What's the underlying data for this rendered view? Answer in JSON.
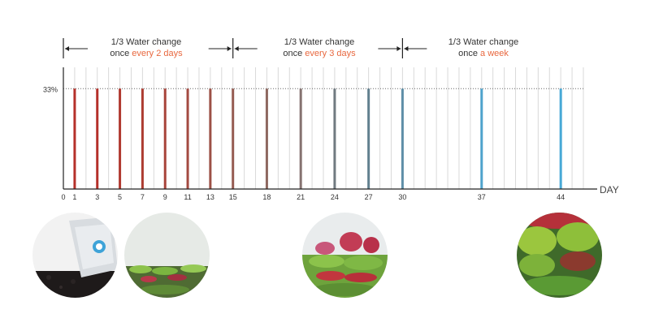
{
  "chart_data": {
    "type": "bar",
    "xlabel": "DAY",
    "ylabel_tick": "33%",
    "x": [
      1,
      3,
      5,
      7,
      9,
      11,
      13,
      15,
      18,
      21,
      24,
      27,
      30,
      37,
      44
    ],
    "x_ticks": [
      0,
      1,
      3,
      5,
      7,
      9,
      11,
      13,
      15,
      18,
      21,
      24,
      27,
      30,
      37,
      44
    ],
    "values": [
      33,
      33,
      33,
      33,
      33,
      33,
      33,
      33,
      33,
      33,
      33,
      33,
      33,
      33,
      33
    ],
    "bar_colors": [
      "#b5302a",
      "#b5302a",
      "#b03a30",
      "#ad3c31",
      "#a8433a",
      "#a44a41",
      "#9c5146",
      "#965c52",
      "#8e6860",
      "#857270",
      "#707a80",
      "#62808f",
      "#5f8fa8",
      "#4fa3cc",
      "#47a9d6"
    ],
    "xlim": [
      0,
      46
    ],
    "ylim": [
      0,
      40
    ],
    "grid": true
  },
  "phases": [
    {
      "line1": "1/3 Water change",
      "prefix": "once ",
      "highlight": "every 2 days",
      "from_day": 0,
      "to_day": 15
    },
    {
      "line1": "1/3 Water change",
      "prefix": "once ",
      "highlight": "every 3 days",
      "from_day": 15,
      "to_day": 30
    },
    {
      "line1": "1/3 Water change",
      "prefix": "once ",
      "highlight": "a week",
      "from_day": 30,
      "to_day": 46
    }
  ],
  "photos": [
    {
      "name": "soil-bag-photo",
      "day": 1
    },
    {
      "name": "early-plants-photo",
      "day": 9
    },
    {
      "name": "growing-plants-photo",
      "day": 24
    },
    {
      "name": "mature-plants-photo",
      "day": 44
    }
  ],
  "colors": {
    "accent": "#e8683f",
    "text": "#333333",
    "axis": "#222222",
    "grid": "#d9d9d9"
  }
}
